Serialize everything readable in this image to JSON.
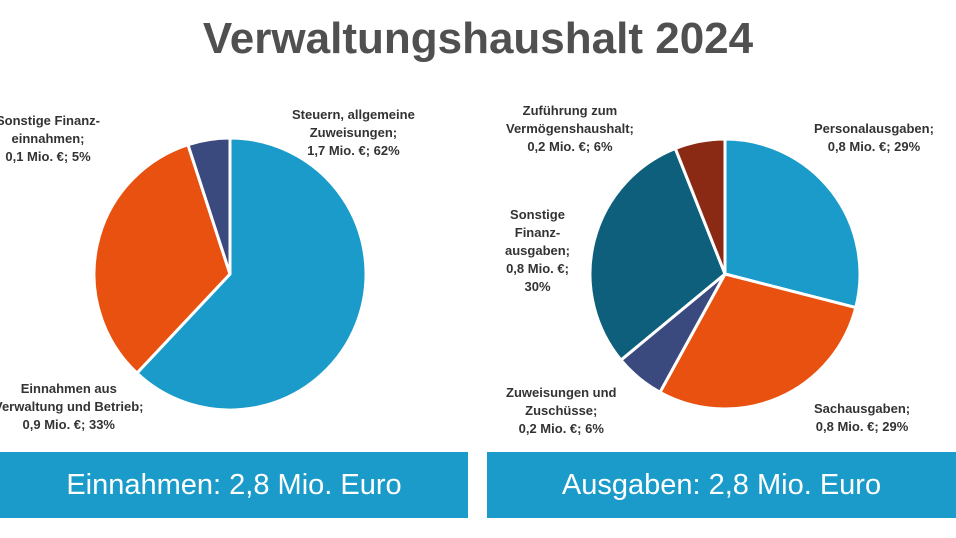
{
  "chart_data": [
    {
      "type": "pie",
      "title": "Verwaltungshaushalt 2024",
      "caption": "Einnahmen: 2,8 Mio. Euro",
      "slices": [
        {
          "label": [
            "Steuern, allgemeine",
            "Zuweisungen;",
            "1,7 Mio. €; 62%"
          ],
          "value": 1.7,
          "percent": 62,
          "color": "#1a9bc9"
        },
        {
          "label": [
            "Einnahmen aus",
            "Verwaltung und Betrieb;",
            "0,9 Mio. €; 33%"
          ],
          "value": 0.9,
          "percent": 33,
          "color": "#e8510f"
        },
        {
          "label": [
            "Sonstige Finanz-",
            "einnahmen;",
            "0,1 Mio. €; 5%"
          ],
          "value": 0.1,
          "percent": 5,
          "color": "#3b4a7e"
        }
      ]
    },
    {
      "type": "pie",
      "caption": "Ausgaben: 2,8 Mio. Euro",
      "slices": [
        {
          "label": [
            "Personalausgaben;",
            "0,8 Mio. €; 29%"
          ],
          "value": 0.8,
          "percent": 29,
          "color": "#1a9bc9"
        },
        {
          "label": [
            "Sachausgaben;",
            "0,8 Mio. €; 29%"
          ],
          "value": 0.8,
          "percent": 29,
          "color": "#e8510f"
        },
        {
          "label": [
            "Zuweisungen und",
            "Zuschüsse;",
            "0,2 Mio. €; 6%"
          ],
          "value": 0.2,
          "percent": 6,
          "color": "#3b4a7e"
        },
        {
          "label": [
            "Sonstige",
            "Finanz-",
            "ausgaben;",
            "0,8 Mio. €;",
            "30%"
          ],
          "value": 0.8,
          "percent": 30,
          "color": "#0d5f7c"
        },
        {
          "label": [
            "Zuführung zum",
            "Vermögenshaushalt;",
            "0,2 Mio. €; 6%"
          ],
          "value": 0.2,
          "percent": 6,
          "color": "#8b2a14"
        }
      ]
    }
  ]
}
